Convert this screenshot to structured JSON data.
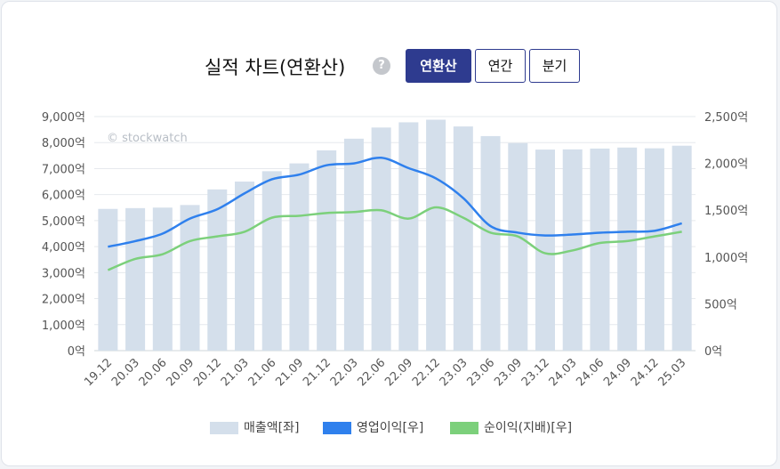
{
  "header": {
    "title": "실적 차트(연환산)",
    "help_icon": "?",
    "buttons": [
      {
        "label": "연환산",
        "active": true
      },
      {
        "label": "연간",
        "active": false
      },
      {
        "label": "분기",
        "active": false
      }
    ]
  },
  "watermark": "© stockwatch",
  "chart_data": {
    "type": "bar",
    "categories": [
      "19.12",
      "20.03",
      "20.06",
      "20.09",
      "20.12",
      "21.03",
      "21.06",
      "21.09",
      "21.12",
      "22.03",
      "22.06",
      "22.09",
      "22.12",
      "23.03",
      "23.06",
      "23.09",
      "23.12",
      "24.03",
      "24.06",
      "24.09",
      "24.12",
      "25.03"
    ],
    "series": [
      {
        "name": "매출액[좌]",
        "type": "bar",
        "axis": "left",
        "color": "#d4dfeb",
        "values": [
          5450,
          5480,
          5500,
          5600,
          6200,
          6500,
          6900,
          7200,
          7700,
          8150,
          8580,
          8780,
          8880,
          8620,
          8250,
          7980,
          7730,
          7740,
          7770,
          7810,
          7780,
          7880
        ]
      },
      {
        "name": "영업이익[우]",
        "type": "line",
        "axis": "right",
        "color": "#2f80ed",
        "values": [
          1110,
          1170,
          1250,
          1410,
          1510,
          1680,
          1830,
          1880,
          1980,
          2000,
          2060,
          1950,
          1840,
          1630,
          1330,
          1260,
          1230,
          1240,
          1260,
          1270,
          1280,
          1360
        ]
      },
      {
        "name": "순이익(지배)[우]",
        "type": "line",
        "axis": "right",
        "color": "#7cd07b",
        "values": [
          860,
          980,
          1030,
          1170,
          1220,
          1270,
          1420,
          1440,
          1470,
          1480,
          1500,
          1410,
          1530,
          1420,
          1260,
          1220,
          1040,
          1070,
          1150,
          1170,
          1220,
          1270
        ]
      }
    ],
    "y_left": {
      "min": 0,
      "max": 9000,
      "step": 1000,
      "tick_labels": [
        "0억",
        "1,000억",
        "2,000억",
        "3,000억",
        "4,000억",
        "5,000억",
        "6,000억",
        "7,000억",
        "8,000억",
        "9,000억"
      ]
    },
    "y_right": {
      "min": 0,
      "max": 2500,
      "step": 500,
      "tick_labels": [
        "0억",
        "500억",
        "1,000억",
        "1,500억",
        "2,000억",
        "2,500억"
      ]
    },
    "grid": true,
    "legend_position": "bottom"
  }
}
